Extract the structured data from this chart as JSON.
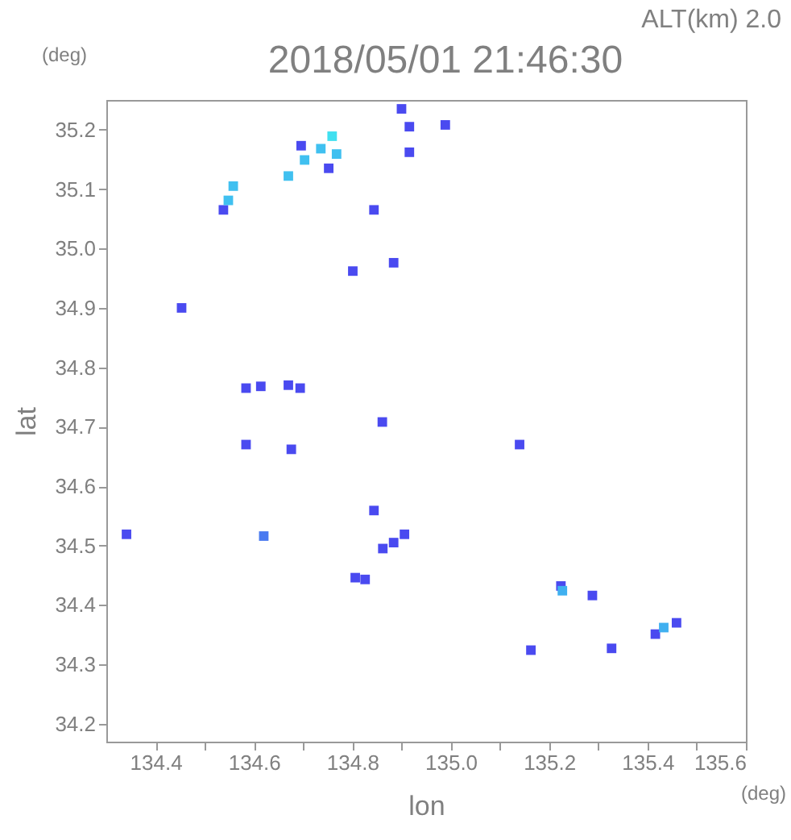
{
  "chart_data": {
    "type": "scatter",
    "title": "2018/05/01 21:46:30",
    "xlabel": "lon",
    "ylabel": "lat",
    "annotations": [
      "ALT(km) 2.0",
      "(deg)",
      "(deg)"
    ],
    "x": [
      134.538,
      134.548,
      134.558,
      134.67,
      134.703,
      134.736,
      134.759,
      134.696,
      134.768,
      134.752,
      134.9,
      134.916,
      134.989,
      134.916,
      134.844,
      134.884,
      134.801,
      134.453,
      134.584,
      134.614,
      134.67,
      134.694,
      134.584,
      134.676,
      134.861,
      135.14,
      134.341,
      134.62,
      134.884,
      134.844,
      134.806,
      134.826,
      134.862,
      134.906,
      135.163,
      135.224,
      135.227,
      135.288,
      135.327,
      135.416,
      135.433,
      135.459
    ],
    "values": [
      35.065,
      35.081,
      35.105,
      35.122,
      35.149,
      35.168,
      35.189,
      35.173,
      35.159,
      35.135,
      35.235,
      35.205,
      35.208,
      35.162,
      35.065,
      34.976,
      34.962,
      34.9,
      34.765,
      34.768,
      34.77,
      34.765,
      34.67,
      34.662,
      34.708,
      34.67,
      34.519,
      34.516,
      34.505,
      34.559,
      34.446,
      34.443,
      34.495,
      34.519,
      34.324,
      34.432,
      34.424,
      34.416,
      34.327,
      34.351,
      34.362,
      34.37
    ],
    "colors": [
      "#4a4af0",
      "#40c0f0",
      "#40c0f0",
      "#40c0f0",
      "#40c0f0",
      "#40c0f0",
      "#40e0f0",
      "#4a4af0",
      "#40c0f0",
      "#4a4af0",
      "#4a4af0",
      "#4a4af0",
      "#4a4af0",
      "#4a4af0",
      "#4a4af0",
      "#4a4af0",
      "#4a4af0",
      "#4a4af0",
      "#4a4af0",
      "#4a4af0",
      "#4a4af0",
      "#4a4af0",
      "#4a4af0",
      "#4a4af0",
      "#4a4af0",
      "#4a4af0",
      "#4a4af0",
      "#4a7af0",
      "#4a4af0",
      "#4a4af0",
      "#4a4af0",
      "#4a4af0",
      "#4a4af0",
      "#4a4af0",
      "#4a4af0",
      "#4a4af0",
      "#40b0f0",
      "#4a4af0",
      "#4a4af0",
      "#4a4af0",
      "#40b0f0",
      "#4a4af0"
    ],
    "marker": "square",
    "xlim": [
      134.3,
      135.6
    ],
    "ylim": [
      34.17,
      35.25
    ],
    "xticks": [
      {
        "value": 134.4,
        "label": "134.4"
      },
      {
        "value": 134.5,
        "label": null
      },
      {
        "value": 134.6,
        "label": "134.6"
      },
      {
        "value": 134.7,
        "label": null
      },
      {
        "value": 134.8,
        "label": "134.8"
      },
      {
        "value": 134.9,
        "label": null
      },
      {
        "value": 135.0,
        "label": "135.0"
      },
      {
        "value": 135.1,
        "label": null
      },
      {
        "value": 135.2,
        "label": "135.2"
      },
      {
        "value": 135.3,
        "label": null
      },
      {
        "value": 135.4,
        "label": "135.4"
      },
      {
        "value": 135.5,
        "label": null
      },
      {
        "value": 135.6,
        "label": "135.6"
      }
    ],
    "yticks": [
      {
        "value": 34.2,
        "label": "34.2"
      },
      {
        "value": 34.3,
        "label": "34.3"
      },
      {
        "value": 34.4,
        "label": "34.4"
      },
      {
        "value": 34.5,
        "label": "34.5"
      },
      {
        "value": 34.6,
        "label": "34.6"
      },
      {
        "value": 34.7,
        "label": "34.7"
      },
      {
        "value": 34.8,
        "label": "34.8"
      },
      {
        "value": 34.9,
        "label": "34.9"
      },
      {
        "value": 35.0,
        "label": "35.0"
      },
      {
        "value": 35.1,
        "label": "35.1"
      },
      {
        "value": 35.2,
        "label": "35.2"
      }
    ],
    "grid": false
  }
}
